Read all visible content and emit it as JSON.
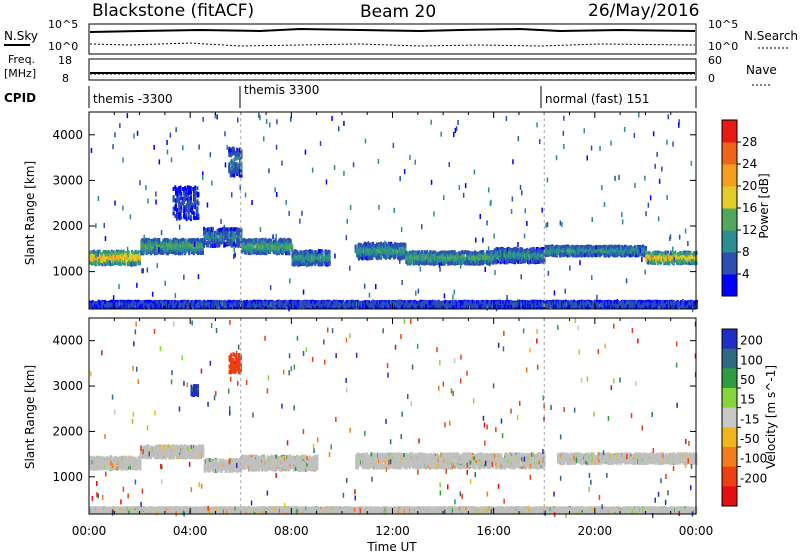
{
  "header": {
    "station": "Blackstone (fitACF)",
    "beam": "Beam 20",
    "date": "26/May/2016"
  },
  "strip_panels": {
    "nsky_label": "N.Sky",
    "nsearch_label": "N.Search",
    "freq_label": "Freq.",
    "freq_unit": "[MHz]",
    "nave_label": "Nave",
    "cpid_label": "CPID",
    "nsky_ticks": [
      "10^5",
      "10^0"
    ],
    "nsearch_ticks": [
      "10^5",
      "10^0"
    ],
    "freq_ticks": [
      "18",
      "8"
    ],
    "nave_ticks": [
      "60",
      "0"
    ]
  },
  "cpid_segments": [
    {
      "start_hour": 0,
      "label": "themis -3300"
    },
    {
      "start_hour": 6,
      "label": "themis 3300"
    },
    {
      "start_hour": 18,
      "label": "normal (fast) 151"
    }
  ],
  "chart_data": [
    {
      "type": "heatmap",
      "panel": "power",
      "xlabel": "Time UT",
      "ylabel": "Slant Range [km]",
      "xlim": [
        0,
        24
      ],
      "ylim": [
        180,
        4500
      ],
      "x_ticks": [
        "00:00",
        "04:00",
        "08:00",
        "12:00",
        "16:00",
        "20:00",
        "00:00"
      ],
      "y_ticks": [
        1000,
        2000,
        3000,
        4000
      ],
      "colorbar": {
        "label": "Power [dB]",
        "ticks": [
          4,
          8,
          12,
          16,
          20,
          24,
          28
        ],
        "colors": [
          "#0000ff",
          "#2b4fb3",
          "#2a8e93",
          "#52a85a",
          "#e3cc27",
          "#f79f1d",
          "#ee6419",
          "#e81a12"
        ]
      },
      "bands": [
        {
          "time_start": 0.0,
          "time_end": 2.0,
          "range_center": 1300,
          "range_width": 280,
          "value_dB": 22
        },
        {
          "time_start": 2.0,
          "time_end": 4.5,
          "range_center": 1550,
          "range_width": 300,
          "value_dB": 14
        },
        {
          "time_start": 4.5,
          "time_end": 6.0,
          "range_center": 1750,
          "range_width": 380,
          "value_dB": 10
        },
        {
          "time_start": 6.0,
          "time_end": 8.0,
          "range_center": 1550,
          "range_width": 300,
          "value_dB": 14
        },
        {
          "time_start": 8.0,
          "time_end": 9.5,
          "range_center": 1300,
          "range_width": 300,
          "value_dB": 12
        },
        {
          "time_start": 10.5,
          "time_end": 12.5,
          "range_center": 1450,
          "range_width": 330,
          "value_dB": 12
        },
        {
          "time_start": 12.5,
          "time_end": 16.0,
          "range_center": 1300,
          "range_width": 260,
          "value_dB": 14
        },
        {
          "time_start": 16.0,
          "time_end": 18.0,
          "range_center": 1350,
          "range_width": 300,
          "value_dB": 11
        },
        {
          "time_start": 18.0,
          "time_end": 22.0,
          "range_center": 1450,
          "range_width": 200,
          "value_dB": 12
        },
        {
          "time_start": 22.0,
          "time_end": 24.0,
          "range_center": 1300,
          "range_width": 240,
          "value_dB": 21
        },
        {
          "time_start": 5.5,
          "time_end": 6.0,
          "range_center": 3400,
          "range_width": 600,
          "value_dB": 9
        },
        {
          "time_start": 3.3,
          "time_end": 4.3,
          "range_center": 2500,
          "range_width": 700,
          "value_dB": 6
        },
        {
          "time_start": 0.0,
          "time_end": 24.0,
          "range_center": 280,
          "range_width": 120,
          "value_dB": 7
        }
      ]
    },
    {
      "type": "heatmap",
      "panel": "velocity",
      "xlabel": "Time UT",
      "ylabel": "Slant Range [km]",
      "xlim": [
        0,
        24
      ],
      "ylim": [
        180,
        4500
      ],
      "x_ticks": [
        "00:00",
        "04:00",
        "08:00",
        "12:00",
        "16:00",
        "20:00",
        "00:00"
      ],
      "y_ticks": [
        1000,
        2000,
        3000,
        4000
      ],
      "colorbar": {
        "label": "Velocity [m s^-1]",
        "ticks": [
          200,
          100,
          50,
          15,
          -15,
          -50,
          -100,
          -200
        ],
        "colors": [
          "#1f2ec6",
          "#2f6a84",
          "#2c9e3f",
          "#85d63a",
          "#c8c8c8",
          "#f0b61c",
          "#f57d17",
          "#ee3e13",
          "#e60f0f"
        ],
        "ground_scatter": "#c0c0c0"
      },
      "bands": [
        {
          "time_start": 0.0,
          "time_end": 2.0,
          "range_center": 1300,
          "range_width": 250,
          "value": 0
        },
        {
          "time_start": 2.0,
          "time_end": 4.5,
          "range_center": 1550,
          "range_width": 250,
          "value": 0
        },
        {
          "time_start": 4.5,
          "time_end": 6.0,
          "range_center": 1250,
          "range_width": 250,
          "value": 0
        },
        {
          "time_start": 6.0,
          "time_end": 9.0,
          "range_center": 1300,
          "range_width": 300,
          "value": 0
        },
        {
          "time_start": 10.5,
          "time_end": 18.0,
          "range_center": 1350,
          "range_width": 300,
          "value": 0
        },
        {
          "time_start": 18.5,
          "time_end": 24.0,
          "range_center": 1400,
          "range_width": 200,
          "value": 0
        },
        {
          "time_start": 0.0,
          "time_end": 24.0,
          "range_center": 260,
          "range_width": 100,
          "value": 0
        },
        {
          "time_start": 5.5,
          "time_end": 6.0,
          "range_center": 3500,
          "range_width": 400,
          "value": -150
        },
        {
          "time_start": 4.0,
          "time_end": 4.3,
          "range_center": 2900,
          "range_width": 200,
          "value": 200
        }
      ]
    }
  ]
}
